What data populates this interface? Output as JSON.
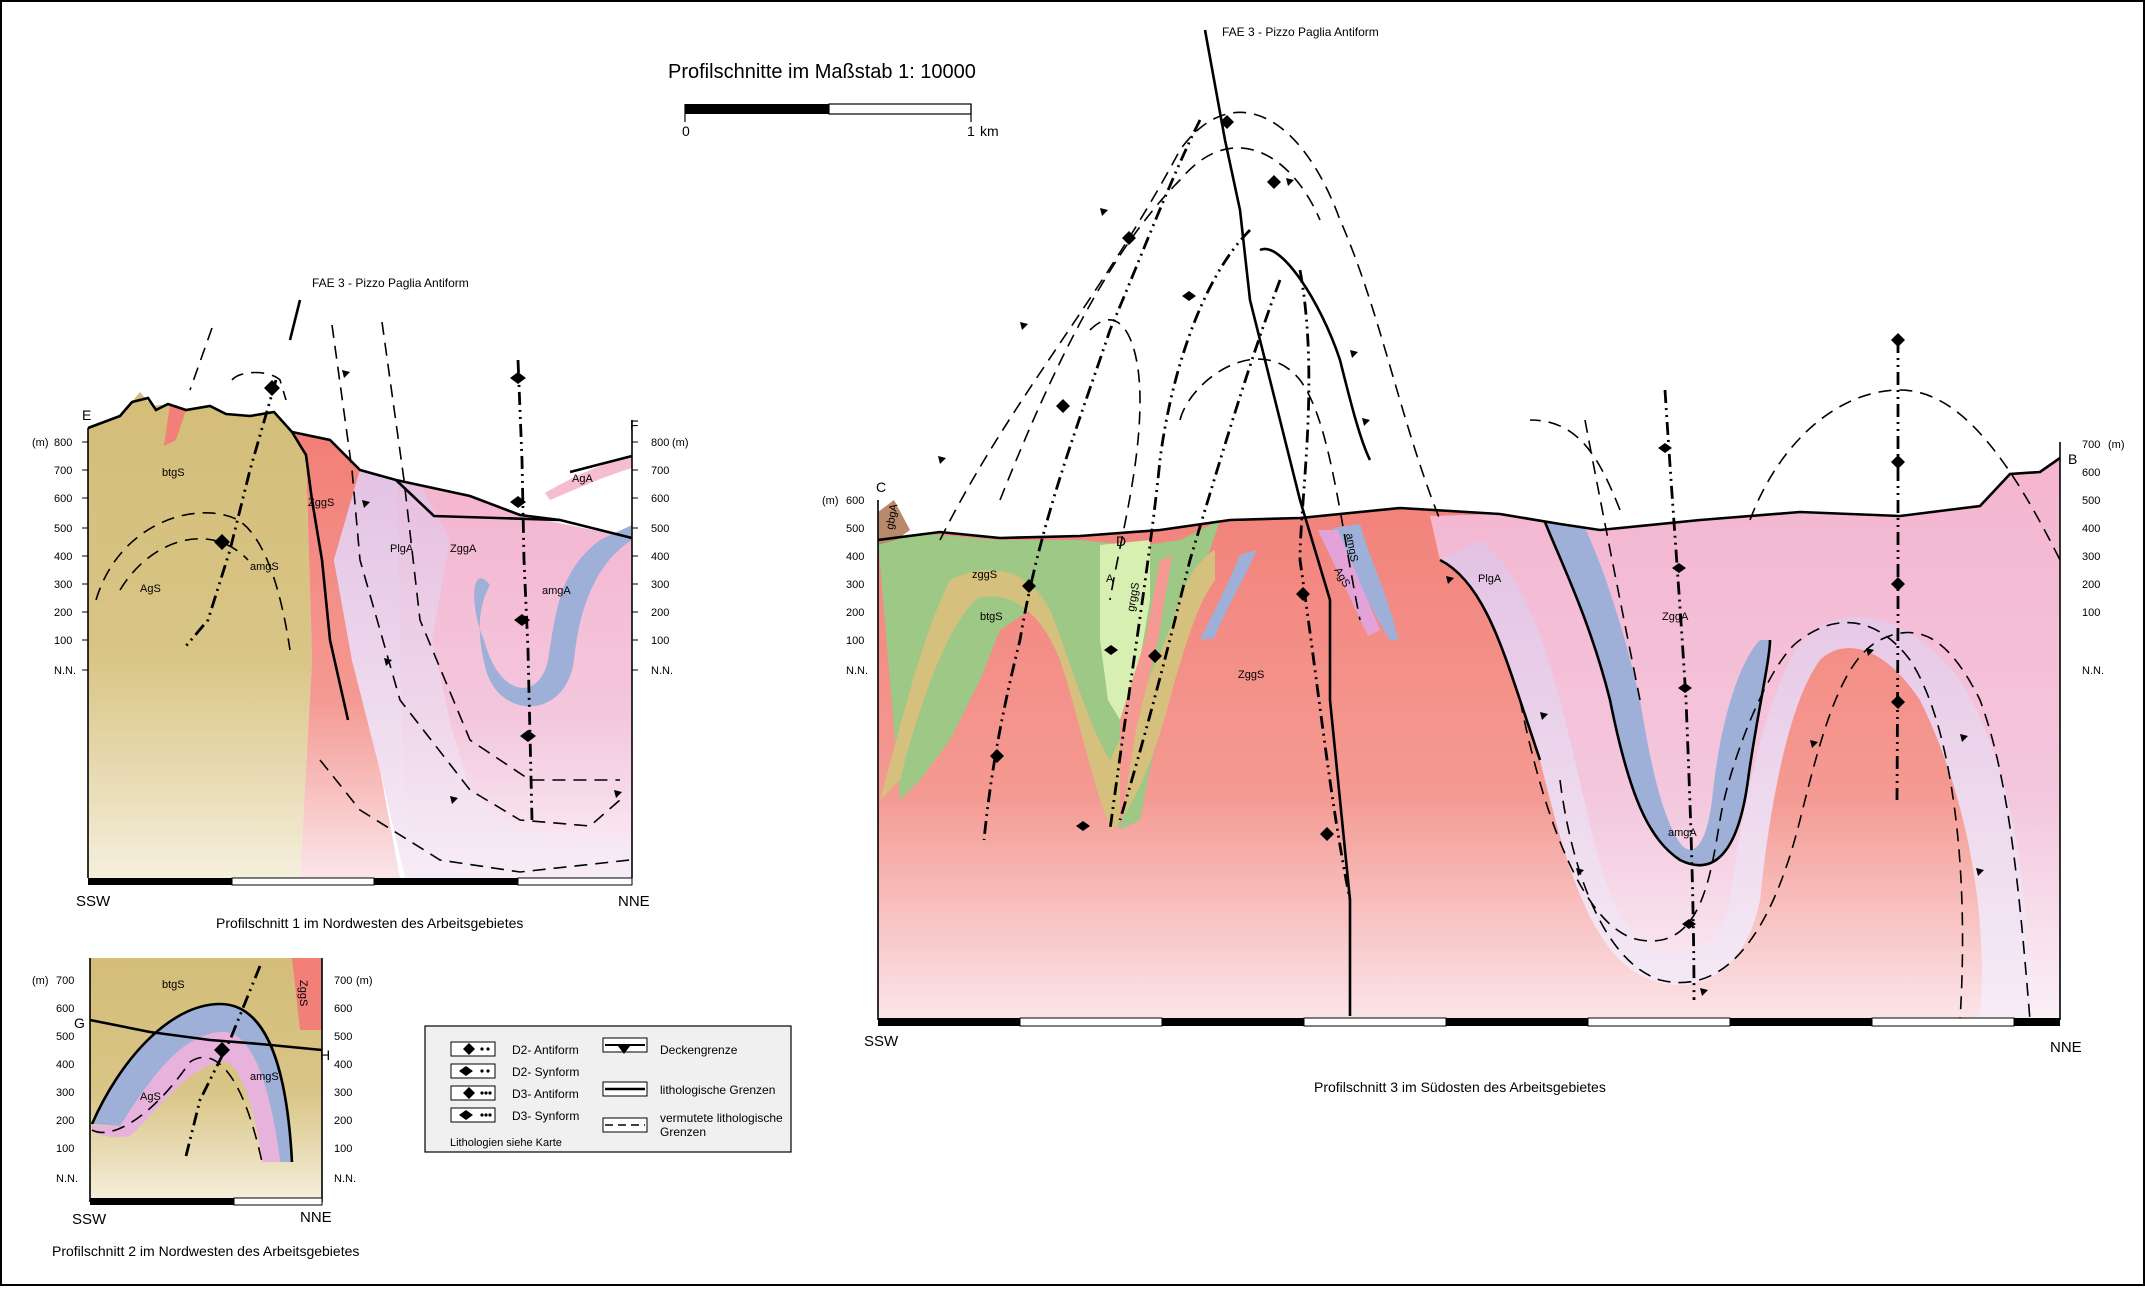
{
  "title": "Profilschnitte im Maßstab 1: 10000",
  "scalebar": {
    "start": "0",
    "end": "1",
    "unit": "km"
  },
  "axes": {
    "unit": "(m)",
    "nn": "N.N."
  },
  "profile1": {
    "caption": "Profilschnitt 1 im Nordwesten des Arbeitsgebietes",
    "fold_label": "FAE 3 - Pizzo Paglia Antiform",
    "left_end": "E",
    "right_end": "F",
    "dir_left": "SSW",
    "dir_right": "NNE",
    "ticks": [
      "800",
      "700",
      "600",
      "500",
      "400",
      "300",
      "200",
      "100",
      "N.N."
    ],
    "units": [
      "btgS",
      "AgS",
      "amgS",
      "ZggS",
      "PlgA",
      "ZggA",
      "amgA",
      "AgA"
    ]
  },
  "profile2": {
    "caption": "Profilschnitt 2 im Nordwesten des Arbeitsgebietes",
    "left_end": "G",
    "right_end": "H",
    "dir_left": "SSW",
    "dir_right": "NNE",
    "ticks": [
      "700",
      "600",
      "500",
      "400",
      "300",
      "200",
      "100",
      "N.N."
    ],
    "units": [
      "btgS",
      "AgS",
      "amgS",
      "ZggS"
    ]
  },
  "profile3": {
    "caption": "Profilschnitt 3 im Südosten des Arbeitsgebietes",
    "fold_label": "FAE 3 - Pizzo Paglia Antiform",
    "left_end": "C",
    "right_end": "B",
    "mid_point": "D",
    "dir_left": "SSW",
    "dir_right": "NNE",
    "ticks_left": [
      "600",
      "500",
      "400",
      "300",
      "200",
      "100",
      "N.N."
    ],
    "ticks_right": [
      "700",
      "600",
      "500",
      "400",
      "300",
      "200",
      "100",
      "N.N."
    ],
    "units": [
      "gbgA",
      "zggS",
      "btgS",
      "A",
      "grggS",
      "ZggS",
      "amgS",
      "AgS",
      "PlgA",
      "ZggA",
      "amgA"
    ]
  },
  "legend": {
    "items": [
      {
        "label": "D2- Antiform"
      },
      {
        "label": "D2- Synform"
      },
      {
        "label": "D3- Antiform"
      },
      {
        "label": "D3- Synform"
      }
    ],
    "line_items": [
      {
        "label": "Deckengrenze"
      },
      {
        "label": "lithologische Grenzen"
      },
      {
        "label": "vermutete lithologische"
      },
      {
        "label": "Grenzen"
      }
    ],
    "note": "Lithologien siehe Karte"
  },
  "colors": {
    "yellow": "#d6c07e",
    "red": "#f48c82",
    "pink": "#f6bcd2",
    "lilac": "#e7c4e4",
    "blue": "#9fb0d8",
    "green": "#9ec886",
    "lightgreen": "#d7efb0",
    "brown": "#b98a6a"
  }
}
